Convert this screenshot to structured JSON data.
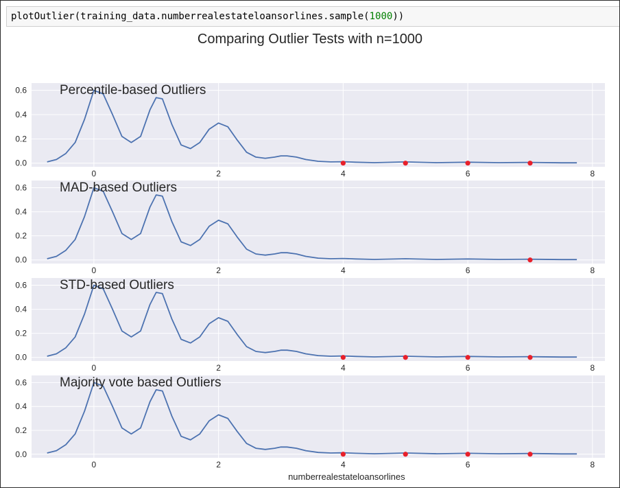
{
  "code": {
    "prefix": "plotOutlier(training_data.numberrealestateloansorlines.sample(",
    "arg": "1000",
    "suffix": "))"
  },
  "figure_title": "Comparing Outlier Tests with n=1000",
  "colors": {
    "axes_background": "#eaeaf2",
    "grid": "#ffffff",
    "line": "#4c72b0",
    "outlier": "#e8202a",
    "text": "#262626"
  },
  "chart_data": [
    {
      "type": "line",
      "title": "Percentile-based Outliers",
      "xlabel": "numberrealestateloansorlines",
      "xlim": [
        -1,
        8.2
      ],
      "ylim": [
        -0.03,
        0.66
      ],
      "xticks": [
        0,
        2,
        4,
        6,
        8
      ],
      "yticks": [
        0.0,
        0.2,
        0.4,
        0.6
      ],
      "grid": true,
      "density_curve": {
        "x": [
          -0.75,
          -0.6,
          -0.45,
          -0.3,
          -0.15,
          0,
          0.15,
          0.3,
          0.45,
          0.6,
          0.75,
          0.9,
          1.0,
          1.1,
          1.25,
          1.4,
          1.55,
          1.7,
          1.85,
          2.0,
          2.15,
          2.3,
          2.45,
          2.6,
          2.75,
          2.9,
          3.0,
          3.1,
          3.25,
          3.4,
          3.6,
          3.8,
          4.0,
          4.2,
          4.5,
          5.0,
          5.5,
          6.0,
          6.5,
          7.0,
          7.5,
          7.75
        ],
        "y": [
          0.01,
          0.03,
          0.08,
          0.17,
          0.36,
          0.6,
          0.57,
          0.4,
          0.22,
          0.17,
          0.22,
          0.44,
          0.54,
          0.53,
          0.32,
          0.15,
          0.12,
          0.17,
          0.28,
          0.33,
          0.3,
          0.19,
          0.09,
          0.05,
          0.04,
          0.05,
          0.06,
          0.06,
          0.05,
          0.03,
          0.015,
          0.01,
          0.012,
          0.008,
          0.004,
          0.01,
          0.004,
          0.008,
          0.004,
          0.006,
          0.003,
          0.003
        ]
      },
      "outliers_x": [
        4,
        5,
        6,
        7
      ]
    },
    {
      "type": "line",
      "title": "MAD-based Outliers",
      "xlabel": "numberrealestateloansorlines",
      "xlim": [
        -1,
        8.2
      ],
      "ylim": [
        -0.03,
        0.66
      ],
      "xticks": [
        0,
        2,
        4,
        6,
        8
      ],
      "yticks": [
        0.0,
        0.2,
        0.4,
        0.6
      ],
      "grid": true,
      "density_curve": {
        "x": [
          -0.75,
          -0.6,
          -0.45,
          -0.3,
          -0.15,
          0,
          0.15,
          0.3,
          0.45,
          0.6,
          0.75,
          0.9,
          1.0,
          1.1,
          1.25,
          1.4,
          1.55,
          1.7,
          1.85,
          2.0,
          2.15,
          2.3,
          2.45,
          2.6,
          2.75,
          2.9,
          3.0,
          3.1,
          3.25,
          3.4,
          3.6,
          3.8,
          4.0,
          4.2,
          4.5,
          5.0,
          5.5,
          6.0,
          6.5,
          7.0,
          7.5,
          7.75
        ],
        "y": [
          0.01,
          0.03,
          0.08,
          0.17,
          0.36,
          0.6,
          0.57,
          0.4,
          0.22,
          0.17,
          0.22,
          0.44,
          0.54,
          0.53,
          0.32,
          0.15,
          0.12,
          0.17,
          0.28,
          0.33,
          0.3,
          0.19,
          0.09,
          0.05,
          0.04,
          0.05,
          0.06,
          0.06,
          0.05,
          0.03,
          0.015,
          0.01,
          0.012,
          0.008,
          0.004,
          0.01,
          0.004,
          0.008,
          0.004,
          0.006,
          0.003,
          0.003
        ]
      },
      "outliers_x": [
        7
      ]
    },
    {
      "type": "line",
      "title": "STD-based Outliers",
      "xlabel": "numberrealestateloansorlines",
      "xlim": [
        -1,
        8.2
      ],
      "ylim": [
        -0.03,
        0.66
      ],
      "xticks": [
        0,
        2,
        4,
        6,
        8
      ],
      "yticks": [
        0.0,
        0.2,
        0.4,
        0.6
      ],
      "grid": true,
      "density_curve": {
        "x": [
          -0.75,
          -0.6,
          -0.45,
          -0.3,
          -0.15,
          0,
          0.15,
          0.3,
          0.45,
          0.6,
          0.75,
          0.9,
          1.0,
          1.1,
          1.25,
          1.4,
          1.55,
          1.7,
          1.85,
          2.0,
          2.15,
          2.3,
          2.45,
          2.6,
          2.75,
          2.9,
          3.0,
          3.1,
          3.25,
          3.4,
          3.6,
          3.8,
          4.0,
          4.2,
          4.5,
          5.0,
          5.5,
          6.0,
          6.5,
          7.0,
          7.5,
          7.75
        ],
        "y": [
          0.01,
          0.03,
          0.08,
          0.17,
          0.36,
          0.6,
          0.57,
          0.4,
          0.22,
          0.17,
          0.22,
          0.44,
          0.54,
          0.53,
          0.32,
          0.15,
          0.12,
          0.17,
          0.28,
          0.33,
          0.3,
          0.19,
          0.09,
          0.05,
          0.04,
          0.05,
          0.06,
          0.06,
          0.05,
          0.03,
          0.015,
          0.01,
          0.012,
          0.008,
          0.004,
          0.01,
          0.004,
          0.008,
          0.004,
          0.006,
          0.003,
          0.003
        ]
      },
      "outliers_x": [
        4,
        5,
        6,
        7
      ]
    },
    {
      "type": "line",
      "title": "Majority vote based Outliers",
      "xlabel": "numberrealestateloansorlines",
      "xlim": [
        -1,
        8.2
      ],
      "ylim": [
        -0.03,
        0.66
      ],
      "xticks": [
        0,
        2,
        4,
        6,
        8
      ],
      "yticks": [
        0.0,
        0.2,
        0.4,
        0.6
      ],
      "grid": true,
      "density_curve": {
        "x": [
          -0.75,
          -0.6,
          -0.45,
          -0.3,
          -0.15,
          0,
          0.15,
          0.3,
          0.45,
          0.6,
          0.75,
          0.9,
          1.0,
          1.1,
          1.25,
          1.4,
          1.55,
          1.7,
          1.85,
          2.0,
          2.15,
          2.3,
          2.45,
          2.6,
          2.75,
          2.9,
          3.0,
          3.1,
          3.25,
          3.4,
          3.6,
          3.8,
          4.0,
          4.2,
          4.5,
          5.0,
          5.5,
          6.0,
          6.5,
          7.0,
          7.5,
          7.75
        ],
        "y": [
          0.01,
          0.03,
          0.08,
          0.17,
          0.36,
          0.6,
          0.57,
          0.4,
          0.22,
          0.17,
          0.22,
          0.44,
          0.54,
          0.53,
          0.32,
          0.15,
          0.12,
          0.17,
          0.28,
          0.33,
          0.3,
          0.19,
          0.09,
          0.05,
          0.04,
          0.05,
          0.06,
          0.06,
          0.05,
          0.03,
          0.015,
          0.01,
          0.012,
          0.008,
          0.004,
          0.01,
          0.004,
          0.008,
          0.004,
          0.006,
          0.003,
          0.003
        ]
      },
      "outliers_x": [
        4,
        5,
        6,
        7
      ]
    }
  ]
}
